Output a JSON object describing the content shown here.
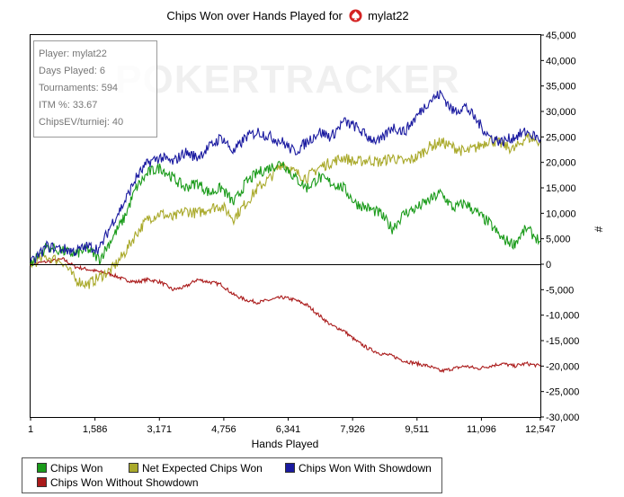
{
  "title": {
    "prefix": "Chips Won over Hands Played for",
    "player": "mylat22",
    "icon": "pokerstars-spade-icon"
  },
  "watermark": "POKERTRACKER",
  "info_box": {
    "player": "Player: mylat22",
    "days_played": "Days Played: 6",
    "tournaments": "Tournaments: 594",
    "itm": "ITM %: 33.67",
    "chipsev": "ChipsEV/turniej: 40"
  },
  "chart_data": {
    "type": "line",
    "xlabel": "Hands Played",
    "ylabel": "#",
    "xlim": [
      1,
      12547
    ],
    "ylim": [
      -30000,
      45000
    ],
    "x_ticks": [
      1,
      1586,
      3171,
      4756,
      6341,
      7926,
      9511,
      11096,
      12547
    ],
    "x_tick_labels": [
      "1",
      "1,586",
      "3,171",
      "4,756",
      "6,341",
      "7,926",
      "9,511",
      "11,096",
      "12,547"
    ],
    "y_ticks": [
      45000,
      40000,
      35000,
      30000,
      25000,
      20000,
      15000,
      10000,
      5000,
      0,
      -5000,
      -10000,
      -15000,
      -20000,
      -25000,
      -30000
    ],
    "y_tick_labels": [
      "45,000",
      "40,000",
      "35,000",
      "30,000",
      "25,000",
      "20,000",
      "15,000",
      "10,000",
      "5,000",
      "0",
      "-5,000",
      "-10,000",
      "-15,000",
      "-20,000",
      "-25,000",
      "-30,000"
    ],
    "legend_position": "bottom",
    "grid": false,
    "series": [
      {
        "name": "Chips Won",
        "color": "#1a9b1a",
        "x": [
          1,
          400,
          800,
          1100,
          1400,
          1700,
          2000,
          2300,
          2600,
          2900,
          3200,
          3500,
          3800,
          4100,
          4400,
          4700,
          5000,
          5300,
          5600,
          5900,
          6200,
          6500,
          6800,
          7100,
          7400,
          7700,
          8000,
          8300,
          8600,
          8900,
          9200,
          9500,
          9800,
          10100,
          10400,
          10700,
          11000,
          11300,
          11600,
          11900,
          12200,
          12547
        ],
        "y": [
          0,
          3500,
          2500,
          2000,
          3000,
          1000,
          5000,
          9000,
          15000,
          18000,
          19000,
          17000,
          15000,
          16000,
          14000,
          15000,
          12000,
          16000,
          18000,
          19000,
          20000,
          17000,
          15000,
          17000,
          16000,
          15000,
          12000,
          11000,
          10000,
          7000,
          10000,
          11000,
          12500,
          14000,
          11000,
          12000,
          10000,
          8000,
          5000,
          4000,
          7000,
          4500
        ]
      },
      {
        "name": "Net Expected Chips Won",
        "color": "#a9a92a",
        "x": [
          1,
          400,
          800,
          1100,
          1400,
          1700,
          2000,
          2300,
          2600,
          2900,
          3200,
          3500,
          3800,
          4100,
          4400,
          4700,
          5000,
          5300,
          5600,
          5900,
          6200,
          6500,
          6800,
          7100,
          7400,
          7700,
          8000,
          8300,
          8600,
          8900,
          9200,
          9500,
          9800,
          10100,
          10400,
          10700,
          11000,
          11300,
          11600,
          11900,
          12200,
          12547
        ],
        "y": [
          0,
          1500,
          500,
          -3000,
          -4000,
          -2500,
          -1000,
          2000,
          6000,
          9000,
          10000,
          9000,
          10500,
          10000,
          11000,
          11500,
          9000,
          12000,
          15000,
          17000,
          20000,
          18000,
          17000,
          19000,
          20000,
          21000,
          20000,
          20500,
          20000,
          21000,
          20000,
          21000,
          23000,
          24000,
          23000,
          22000,
          23000,
          24500,
          23500,
          22500,
          25000,
          24000
        ]
      },
      {
        "name": "Chips Won With Showdown",
        "color": "#1a1aa0",
        "x": [
          1,
          400,
          800,
          1100,
          1400,
          1700,
          2000,
          2300,
          2600,
          2900,
          3200,
          3500,
          3800,
          4100,
          4400,
          4700,
          5000,
          5300,
          5600,
          5900,
          6200,
          6500,
          6800,
          7100,
          7400,
          7700,
          8000,
          8300,
          8600,
          8900,
          9200,
          9500,
          9800,
          10100,
          10400,
          10700,
          11000,
          11300,
          11600,
          11900,
          12200,
          12547
        ],
        "y": [
          0,
          3500,
          3000,
          2500,
          3500,
          3000,
          8000,
          12000,
          17000,
          20000,
          21000,
          20000,
          22000,
          21000,
          23000,
          25000,
          22000,
          25000,
          26000,
          25000,
          24000,
          22000,
          24000,
          26000,
          25000,
          28000,
          27000,
          25000,
          24000,
          27000,
          26000,
          29000,
          32000,
          33500,
          30000,
          31000,
          28000,
          25000,
          24000,
          25000,
          26000,
          24500
        ]
      },
      {
        "name": "Chips Won Without Showdown",
        "color": "#aa1a1a",
        "x": [
          1,
          400,
          800,
          1100,
          1400,
          1700,
          2000,
          2300,
          2600,
          2900,
          3200,
          3500,
          3800,
          4100,
          4400,
          4700,
          5000,
          5300,
          5600,
          5900,
          6200,
          6500,
          6800,
          7100,
          7400,
          7700,
          8000,
          8300,
          8600,
          8900,
          9200,
          9500,
          9800,
          10100,
          10400,
          10700,
          11000,
          11300,
          11600,
          11900,
          12200,
          12547
        ],
        "y": [
          0,
          500,
          1000,
          -500,
          -1000,
          -1500,
          -2000,
          -3000,
          -3500,
          -3000,
          -3500,
          -5000,
          -4500,
          -3000,
          -3500,
          -4000,
          -6000,
          -7000,
          -7500,
          -7000,
          -6500,
          -7000,
          -8000,
          -10000,
          -12000,
          -13000,
          -15000,
          -16500,
          -17500,
          -18000,
          -19000,
          -19500,
          -20000,
          -21000,
          -20500,
          -20000,
          -20500,
          -20000,
          -19500,
          -20000,
          -19500,
          -20000
        ]
      }
    ]
  }
}
